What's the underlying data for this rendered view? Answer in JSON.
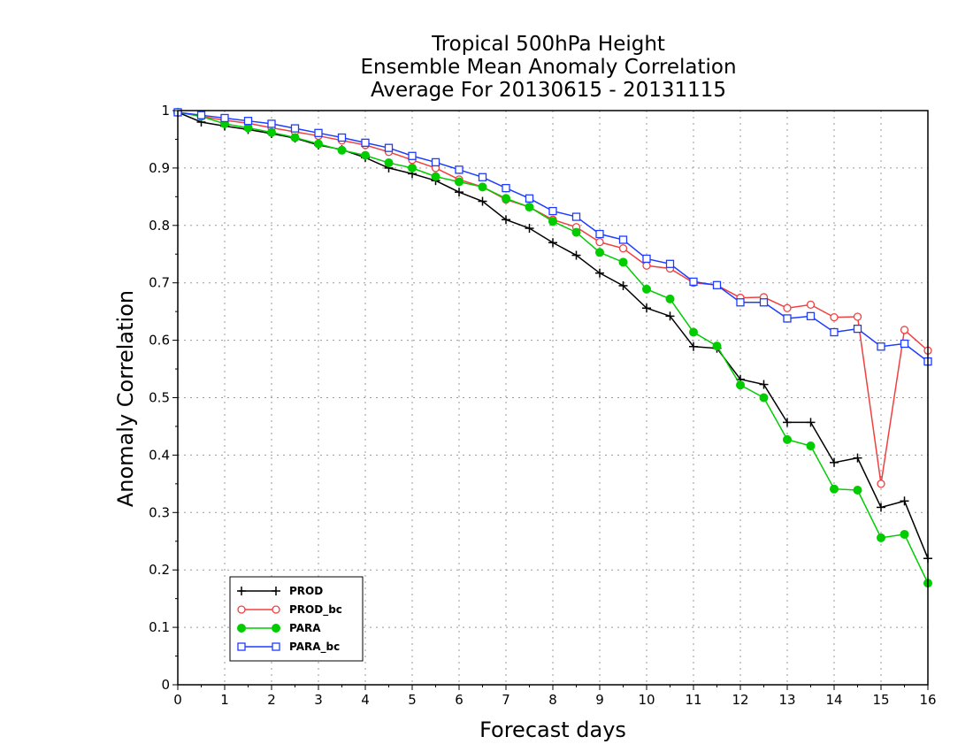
{
  "chart_data": {
    "type": "line",
    "title": [
      "Tropical 500hPa Height",
      "Ensemble Mean Anomaly Correlation",
      "Average For 20130615 - 20131115"
    ],
    "xlabel": "Forecast days",
    "ylabel": "Anomaly Correlation",
    "xlim": [
      0,
      16
    ],
    "ylim": [
      0,
      1
    ],
    "x_ticks": [
      "0",
      "1",
      "2",
      "3",
      "4",
      "5",
      "6",
      "7",
      "8",
      "9",
      "10",
      "11",
      "12",
      "13",
      "14",
      "15",
      "16"
    ],
    "y_ticks": [
      "0",
      "0.1",
      "0.2",
      "0.3",
      "0.4",
      "0.5",
      "0.6",
      "0.7",
      "0.8",
      "0.9",
      "1"
    ],
    "grid": true,
    "legend_position": "bottom-left",
    "x": [
      0,
      0.5,
      1,
      1.5,
      2,
      2.5,
      3,
      3.5,
      4,
      4.5,
      5,
      5.5,
      6,
      6.5,
      7,
      7.5,
      8,
      8.5,
      9,
      9.5,
      10,
      10.5,
      11,
      11.5,
      12,
      12.5,
      13,
      13.5,
      14,
      14.5,
      15,
      15.5,
      16
    ],
    "series": [
      {
        "name": "PROD",
        "color": "#000000",
        "marker": "plus",
        "values": [
          0.997,
          0.98,
          0.973,
          0.967,
          0.96,
          0.952,
          0.94,
          0.932,
          0.918,
          0.9,
          0.89,
          0.878,
          0.858,
          0.842,
          0.81,
          0.795,
          0.77,
          0.748,
          0.717,
          0.695,
          0.656,
          0.642,
          0.589,
          0.586,
          0.532,
          0.523,
          0.457,
          0.457,
          0.387,
          0.395,
          0.309,
          0.32,
          0.22
        ]
      },
      {
        "name": "PROD_bc",
        "color": "#f04040",
        "marker": "open-circle",
        "values": [
          0.997,
          0.99,
          0.983,
          0.978,
          0.97,
          0.963,
          0.956,
          0.948,
          0.94,
          0.928,
          0.914,
          0.9,
          0.88,
          0.867,
          0.845,
          0.832,
          0.81,
          0.797,
          0.771,
          0.76,
          0.73,
          0.725,
          0.7,
          0.696,
          0.674,
          0.675,
          0.656,
          0.662,
          0.64,
          0.641,
          0.35,
          0.618,
          0.582
        ]
      },
      {
        "name": "PARA",
        "color": "#00cc00",
        "marker": "filled-circle",
        "values": [
          0.997,
          0.99,
          0.977,
          0.97,
          0.962,
          0.953,
          0.942,
          0.931,
          0.922,
          0.909,
          0.9,
          0.885,
          0.876,
          0.867,
          0.847,
          0.832,
          0.807,
          0.788,
          0.753,
          0.736,
          0.689,
          0.672,
          0.614,
          0.59,
          0.522,
          0.5,
          0.427,
          0.416,
          0.341,
          0.339,
          0.256,
          0.262,
          0.177
        ]
      },
      {
        "name": "PARA_bc",
        "color": "#1e3cff",
        "marker": "open-square",
        "values": [
          0.997,
          0.992,
          0.987,
          0.982,
          0.977,
          0.969,
          0.961,
          0.953,
          0.944,
          0.935,
          0.921,
          0.91,
          0.897,
          0.884,
          0.865,
          0.847,
          0.825,
          0.815,
          0.785,
          0.775,
          0.742,
          0.733,
          0.702,
          0.696,
          0.666,
          0.666,
          0.638,
          0.642,
          0.614,
          0.62,
          0.589,
          0.594,
          0.563
        ]
      }
    ]
  }
}
